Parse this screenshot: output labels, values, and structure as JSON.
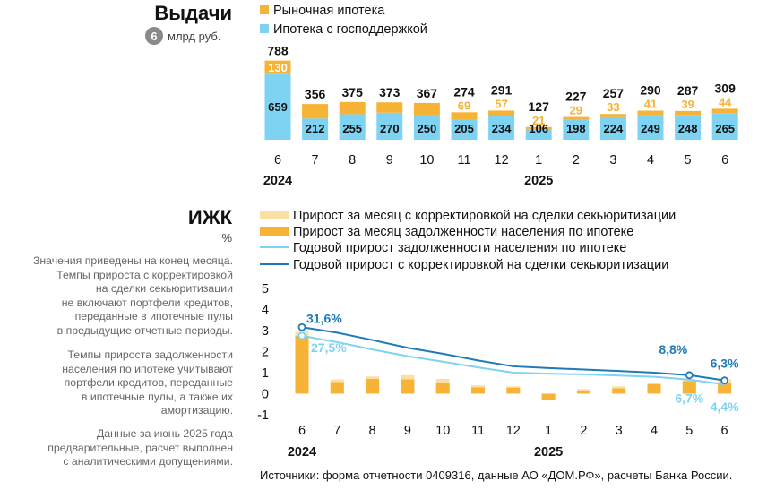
{
  "chart_data": [
    {
      "type": "bar",
      "stacked": true,
      "title": "Выдачи",
      "subtitle_badge": "6",
      "subtitle_unit": "млрд руб.",
      "categories": [
        "6",
        "7",
        "8",
        "9",
        "10",
        "11",
        "12",
        "1",
        "2",
        "3",
        "4",
        "5",
        "6"
      ],
      "year_labels": [
        {
          "label": "2024",
          "at_index": 0
        },
        {
          "label": "2025",
          "at_index": 7
        }
      ],
      "totals": [
        788,
        356,
        375,
        373,
        367,
        274,
        291,
        127,
        227,
        257,
        290,
        287,
        309
      ],
      "series": [
        {
          "name": "Ипотека с господдержкой",
          "color": "#7FD3F2",
          "label_color": "#111111",
          "values": [
            659,
            212,
            255,
            270,
            250,
            205,
            234,
            106,
            198,
            224,
            249,
            248,
            265
          ]
        },
        {
          "name": "Рыночная ипотека",
          "color": "#F6B335",
          "label_color": "#F6B335",
          "values": [
            130,
            144,
            121,
            103,
            117,
            69,
            57,
            21,
            29,
            33,
            41,
            39,
            44
          ]
        }
      ],
      "legend_position": "top-right",
      "ylim": [
        0,
        800
      ]
    },
    {
      "type": "bar+line",
      "title": "ИЖК",
      "unit": "%",
      "categories": [
        "6",
        "7",
        "8",
        "9",
        "10",
        "11",
        "12",
        "1",
        "2",
        "3",
        "4",
        "5",
        "6"
      ],
      "year_labels": [
        {
          "label": "2024",
          "at_index": 0
        },
        {
          "label": "2025",
          "at_index": 7
        }
      ],
      "yticks": [
        "5",
        "4",
        "3",
        "2",
        "1",
        "0",
        "-1"
      ],
      "ylim": [
        -1.3,
        5.3
      ],
      "series": [
        {
          "name": "Прирост за месяц с корректировкой на сделки секьюритизации",
          "kind": "bar",
          "color": "#FBE0A6",
          "values": [
            2.95,
            0.68,
            0.82,
            0.88,
            0.7,
            0.4,
            0.35,
            -0.15,
            0.22,
            0.35,
            0.52,
            0.65,
            0.7
          ]
        },
        {
          "name": "Прирост за месяц задолженности населения по ипотеке",
          "kind": "bar",
          "color": "#F6B335",
          "values": [
            2.75,
            0.55,
            0.7,
            0.68,
            0.5,
            0.3,
            0.28,
            -0.3,
            0.15,
            0.25,
            0.45,
            0.6,
            0.5
          ]
        },
        {
          "name": "Годовой прирост задолженности населения по ипотеке",
          "kind": "line",
          "color": "#7FD3F2",
          "values": [
            2.75,
            2.45,
            2.1,
            1.78,
            1.52,
            1.25,
            1.0,
            0.95,
            0.92,
            0.86,
            0.8,
            0.67,
            0.44
          ]
        },
        {
          "name": "Годовой прирост с корректировкой на сделки секьюритизации",
          "kind": "line",
          "color": "#1E7BB8",
          "values": [
            3.16,
            2.9,
            2.55,
            2.18,
            1.9,
            1.58,
            1.3,
            1.22,
            1.15,
            1.08,
            1.0,
            0.88,
            0.63
          ]
        }
      ],
      "annotations": [
        {
          "text": "31,6%",
          "series": 3,
          "index": 0,
          "color": "#1E7BB8"
        },
        {
          "text": "27,5%",
          "series": 2,
          "index": 0,
          "color": "#7FD3F2"
        },
        {
          "text": "8,8%",
          "series": 3,
          "index": 11,
          "color": "#1E7BB8"
        },
        {
          "text": "6,3%",
          "series": 3,
          "index": 12,
          "color": "#1E7BB8"
        },
        {
          "text": "6,7%",
          "series": 2,
          "index": 11,
          "color": "#7FD3F2"
        },
        {
          "text": "4,4%",
          "series": 2,
          "index": 12,
          "color": "#7FD3F2"
        }
      ],
      "legend_position": "top"
    }
  ],
  "notes": {
    "p1": [
      "Значения приведены на конец месяца.",
      "Темпы прироста с корректировкой",
      "на сделки секьюритизации",
      "не включают портфели кредитов,",
      "переданные в ипотечные пулы",
      "в предыдущие отчетные периоды."
    ],
    "p2": [
      "Темпы прироста задолженности",
      "населения по ипотеке учитывают",
      "портфели кредитов, переданные",
      "в ипотечные пулы, а также их",
      "амортизацию."
    ],
    "p3": [
      "Данные за июнь 2025 года",
      "предварительные, расчет выполнен",
      "с аналитическими допущениями."
    ]
  },
  "source": "Источники: форма отчетности 0409316, данные АО «ДОМ.РФ», расчеты Банка России."
}
